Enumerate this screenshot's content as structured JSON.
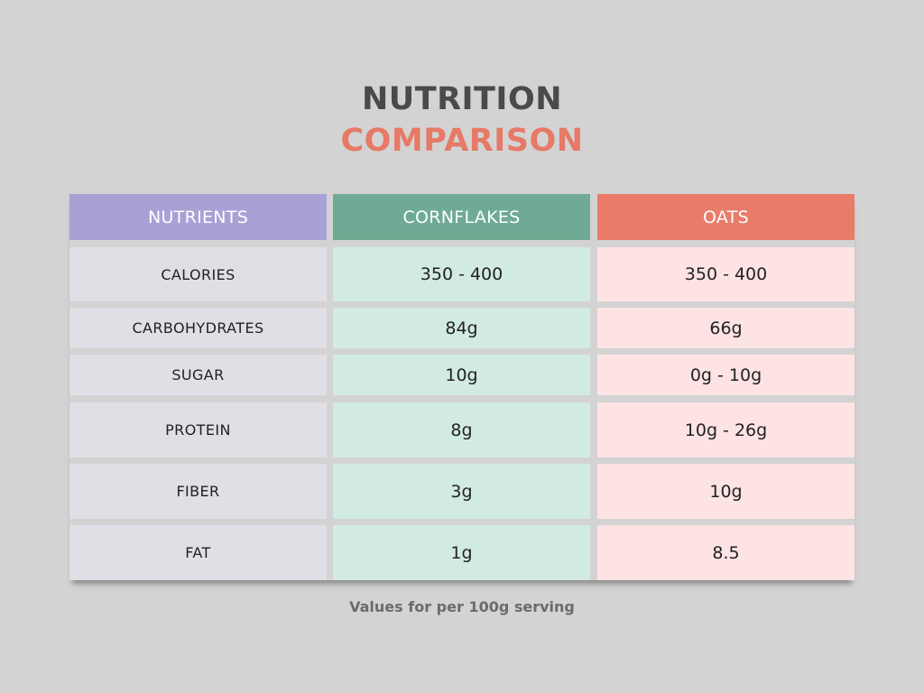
{
  "title": {
    "line1": "NUTRITION",
    "line2": "COMPARISON"
  },
  "colors": {
    "nutrients_header": "#a8a1d6",
    "cornflakes_header": "#6fab94",
    "oats_header": "#e97c69",
    "nutrients_cell": "#e0dfe6",
    "cornflakes_cell": "#d2ebe2",
    "oats_cell": "#fde3e3",
    "title_dark": "#4a4a4a",
    "title_accent": "#e67a66"
  },
  "chart_data": {
    "type": "table",
    "columns": [
      "NUTRIENTS",
      "CORNFLAKES",
      "OATS"
    ],
    "rows": [
      {
        "nutrient": "CALORIES",
        "cornflakes": "350 - 400",
        "oats": "350 - 400"
      },
      {
        "nutrient": "CARBOHYDRATES",
        "cornflakes": "84g",
        "oats": "66g"
      },
      {
        "nutrient": "SUGAR",
        "cornflakes": "10g",
        "oats": "0g - 10g"
      },
      {
        "nutrient": "PROTEIN",
        "cornflakes": "8g",
        "oats": "10g - 26g"
      },
      {
        "nutrient": "FIBER",
        "cornflakes": "3g",
        "oats": "10g"
      },
      {
        "nutrient": "FAT",
        "cornflakes": "1g",
        "oats": "8.5"
      }
    ]
  },
  "footnote": "Values for per 100g serving"
}
